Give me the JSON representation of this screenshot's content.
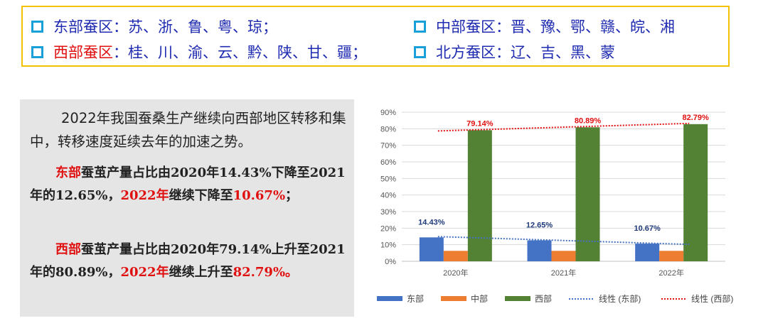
{
  "regions": {
    "east": {
      "name": "东部蚕区",
      "provinces": "：苏、浙、鲁、粤、琼；"
    },
    "central": {
      "name": "中部蚕区",
      "provinces": "：晋、豫、鄂、赣、皖、湘"
    },
    "west": {
      "name": "西部蚕区",
      "provinces": "：桂、川、渝、云、黔、陕、甘、疆；"
    },
    "north": {
      "name": "北方蚕区",
      "provinces": "：辽、吉、黑、蒙"
    }
  },
  "text": {
    "para1": "2022年我国蚕桑生产继续向西部地区转移和集中，转移速度延续去年的加速之势。",
    "para2_a": "东部",
    "para2_b": "蚕茧产量占比由2020年14.43%下降至2021年的12.65%，",
    "para2_c": "2022年",
    "para2_d": "继续下降至",
    "para2_e": "10.67%",
    "para2_f": "；",
    "para3_a": "西部",
    "para3_b": "蚕茧产量占比由2020年79.14%上升至2021年的80.89%，",
    "para3_c": "2022年",
    "para3_d": "继续上升至",
    "para3_e": "82.79%。"
  },
  "chart_data": {
    "type": "bar",
    "categories": [
      "2020年",
      "2021年",
      "2022年"
    ],
    "series": [
      {
        "name": "东部",
        "color": "#4472c4",
        "values": [
          14.43,
          12.65,
          10.67
        ]
      },
      {
        "name": "中部",
        "color": "#ed7d31",
        "values": [
          6.3,
          6.3,
          6.3
        ]
      },
      {
        "name": "西部",
        "color": "#548235",
        "values": [
          79.14,
          80.89,
          82.79
        ]
      }
    ],
    "trendlines": [
      {
        "name": "线性 (东部)",
        "color": "#4472c4",
        "values": [
          14.43,
          12.55,
          10.67
        ]
      },
      {
        "name": "线性 (西部)",
        "color": "#e01010",
        "values": [
          79.14,
          80.965,
          82.79
        ]
      }
    ],
    "data_labels": {
      "东部": [
        "14.43%",
        "12.65%",
        "10.67%"
      ],
      "西部": [
        "79.14%",
        "80.89%",
        "82.79%"
      ]
    },
    "y_ticks": [
      "0%",
      "10%",
      "20%",
      "30%",
      "40%",
      "50%",
      "60%",
      "70%",
      "80%",
      "90%"
    ],
    "ylim": [
      0,
      90
    ],
    "grid": true,
    "legend_position": "bottom"
  }
}
